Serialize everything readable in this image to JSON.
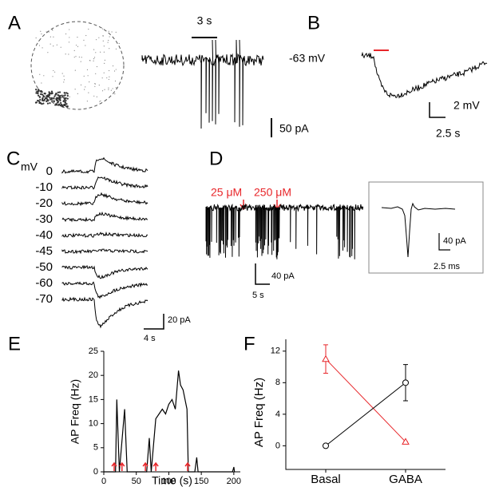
{
  "panel_labels": [
    "A",
    "B",
    "C",
    "D",
    "E",
    "F"
  ],
  "panel_a": {
    "scale_time": "3 s",
    "scale_current": "50 pA"
  },
  "panel_b": {
    "potential": "-63 mV",
    "scale_voltage": "2 mV",
    "scale_time": "2.5 s"
  },
  "panel_c": {
    "unit": "mV",
    "voltages": [
      "0",
      "-10",
      "-20",
      "-30",
      "-40",
      "-45",
      "-50",
      "-60",
      "-70"
    ],
    "scale_current": "20 pA",
    "scale_time": "4 s"
  },
  "panel_d": {
    "doses": [
      "25 μM",
      "250 μM"
    ],
    "scale_current": "40 pA",
    "scale_time": "5 s",
    "inset_current": "40 pA",
    "inset_time": "2.5 ms"
  },
  "chart_data": [
    {
      "type": "line",
      "x_label": "Time (s)",
      "y_label": "AP Freq (Hz)",
      "color": "#000000",
      "x": [
        0,
        18,
        20,
        24,
        32,
        36,
        66,
        70,
        73,
        80,
        85,
        90,
        95,
        100,
        105,
        110,
        115,
        118,
        122,
        128,
        130,
        140,
        143,
        145,
        198,
        200,
        201
      ],
      "values": [
        0,
        0,
        15,
        0,
        13,
        0,
        0,
        7,
        0,
        11,
        12,
        13,
        12,
        14,
        15,
        13,
        21,
        18,
        17,
        13,
        0,
        0,
        3,
        0,
        0,
        1,
        0
      ],
      "arrows_x": [
        16,
        28,
        64,
        80,
        129
      ],
      "arrow_color": "#e8262a",
      "xlim": [
        0,
        210
      ],
      "xticks": [
        0,
        50,
        100,
        150,
        200
      ],
      "ylim": [
        0,
        25
      ],
      "yticks": [
        0,
        5,
        10,
        15,
        20,
        25
      ]
    },
    {
      "type": "line",
      "y_label": "AP Freq (Hz)",
      "categories": [
        "Basal",
        "GABA"
      ],
      "series": [
        {
          "color": "#e8262a",
          "marker": "triangle",
          "values": [
            11,
            0.5
          ],
          "errors": [
            1.8,
            0
          ]
        },
        {
          "color": "#000000",
          "marker": "circle",
          "values": [
            0,
            8
          ],
          "errors": [
            0,
            2.3
          ]
        }
      ],
      "ylim": [
        -3,
        13.5
      ],
      "yticks": [
        0,
        4,
        8,
        12
      ]
    }
  ]
}
